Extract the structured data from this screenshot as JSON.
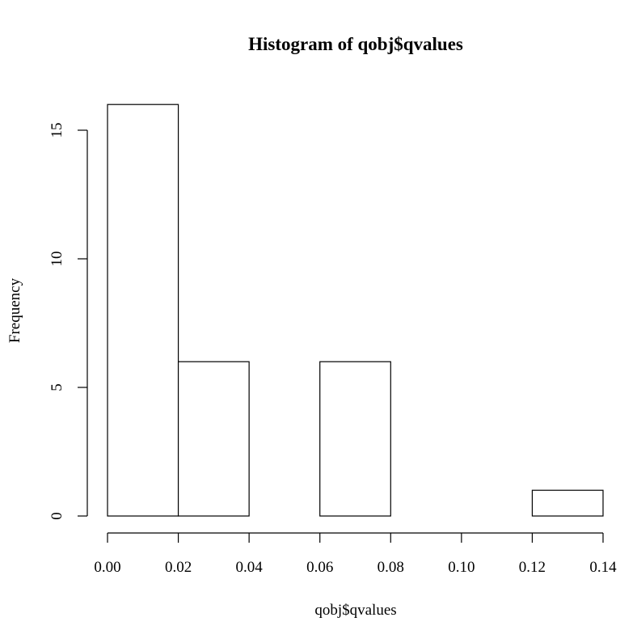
{
  "chart_data": {
    "type": "bar",
    "title": "Histogram of qobj$qvalues",
    "xlabel": "qobj$qvalues",
    "ylabel": "Frequency",
    "bins": [
      {
        "x0": 0.0,
        "x1": 0.02,
        "count": 16
      },
      {
        "x0": 0.02,
        "x1": 0.04,
        "count": 6
      },
      {
        "x0": 0.04,
        "x1": 0.06,
        "count": 0
      },
      {
        "x0": 0.06,
        "x1": 0.08,
        "count": 6
      },
      {
        "x0": 0.08,
        "x1": 0.1,
        "count": 0
      },
      {
        "x0": 0.1,
        "x1": 0.12,
        "count": 0
      },
      {
        "x0": 0.12,
        "x1": 0.14,
        "count": 1
      }
    ],
    "xlim": [
      0.0,
      0.14
    ],
    "ylim": [
      0,
      16
    ],
    "x_ticks": [
      0.0,
      0.02,
      0.04,
      0.06,
      0.08,
      0.1,
      0.12,
      0.14
    ],
    "x_tick_labels": [
      "0.00",
      "0.02",
      "0.04",
      "0.06",
      "0.08",
      "0.10",
      "0.12",
      "0.14"
    ],
    "y_ticks": [
      0,
      5,
      10,
      15
    ],
    "y_tick_labels": [
      "0",
      "5",
      "10",
      "15"
    ],
    "grid": false,
    "colors": {
      "bar_fill": "#ffffff",
      "bar_stroke": "#000000"
    }
  }
}
